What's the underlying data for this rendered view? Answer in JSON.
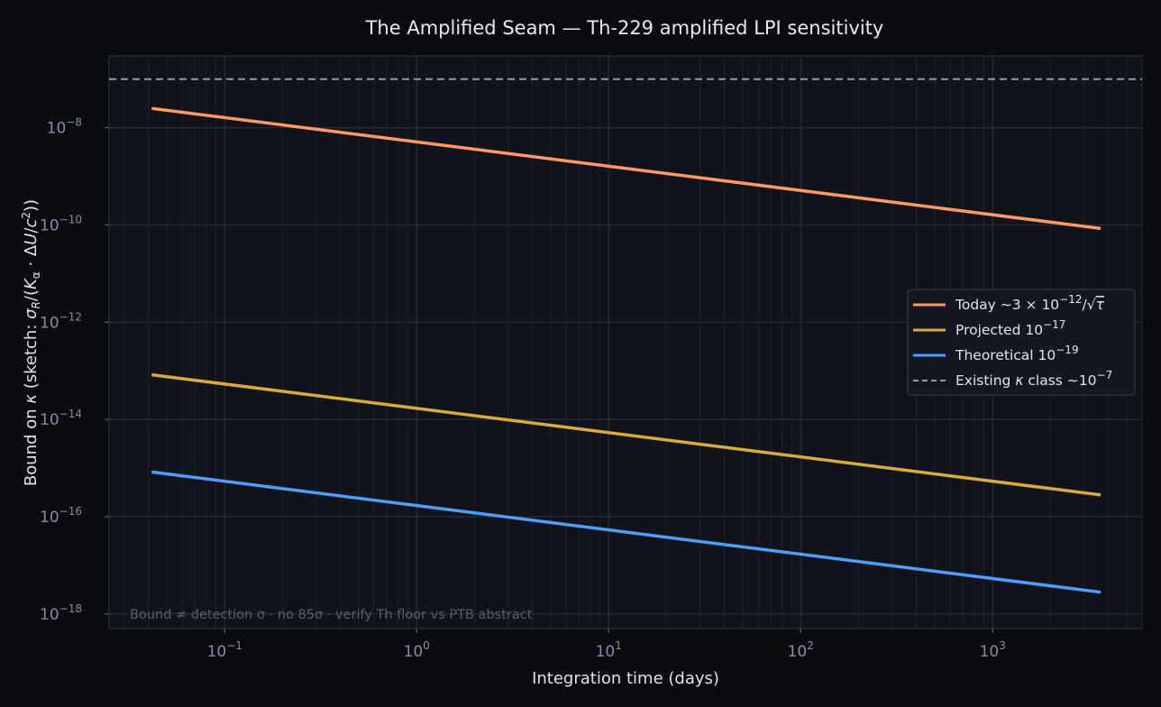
{
  "chart_data": {
    "type": "line",
    "title": "The Amplified Seam — Th-229 amplified LPI sensitivity",
    "xlabel": "Integration time (days)",
    "ylabel": "Bound on κ  (sketch: σ_R/(K_α · ΔU/c²))",
    "x_scale": "log",
    "y_scale": "log",
    "xlim": [
      0.025,
      6000
    ],
    "ylim": [
      5e-19,
      3e-07
    ],
    "grid": true,
    "legend_position": "right",
    "x_ticks": [
      {
        "value": 0.1,
        "base": "10",
        "exp": "−1"
      },
      {
        "value": 1,
        "base": "10",
        "exp": "0"
      },
      {
        "value": 10,
        "base": "10",
        "exp": "1"
      },
      {
        "value": 100,
        "base": "10",
        "exp": "2"
      },
      {
        "value": 1000,
        "base": "10",
        "exp": "3"
      }
    ],
    "y_ticks": [
      {
        "value": 1e-08,
        "base": "10",
        "exp": "−8"
      },
      {
        "value": 1e-10,
        "base": "10",
        "exp": "−10"
      },
      {
        "value": 1e-12,
        "base": "10",
        "exp": "−12"
      },
      {
        "value": 1e-14,
        "base": "10",
        "exp": "−14"
      },
      {
        "value": 1e-16,
        "base": "10",
        "exp": "−16"
      },
      {
        "value": 1e-18,
        "base": "10",
        "exp": "−18"
      }
    ],
    "series": [
      {
        "name": "Today ∼3×10⁻¹²/√τ",
        "color": "#ff9966",
        "style": "solid",
        "x": [
          0.0417,
          3650
        ],
        "y": [
          2.5e-08,
          8.5e-11
        ]
      },
      {
        "name": "Projected 10⁻¹⁷",
        "color": "#d9ab3e",
        "style": "solid",
        "x": [
          0.0417,
          3650
        ],
        "y": [
          8.3e-14,
          2.8e-16
        ]
      },
      {
        "name": "Theoretical 10⁻¹⁹",
        "color": "#4d9eff",
        "style": "solid",
        "x": [
          0.0417,
          3650
        ],
        "y": [
          8.3e-16,
          2.8e-18
        ]
      },
      {
        "name": "Existing κ class ∼10⁻⁷",
        "color": "#9c95b8",
        "style": "dashed",
        "x": [
          0.025,
          6000
        ],
        "y": [
          1e-07,
          1e-07
        ]
      }
    ],
    "annotations": [
      "Bound ≠ detection σ · no 85σ · verify Th floor vs PTB abstract"
    ]
  }
}
